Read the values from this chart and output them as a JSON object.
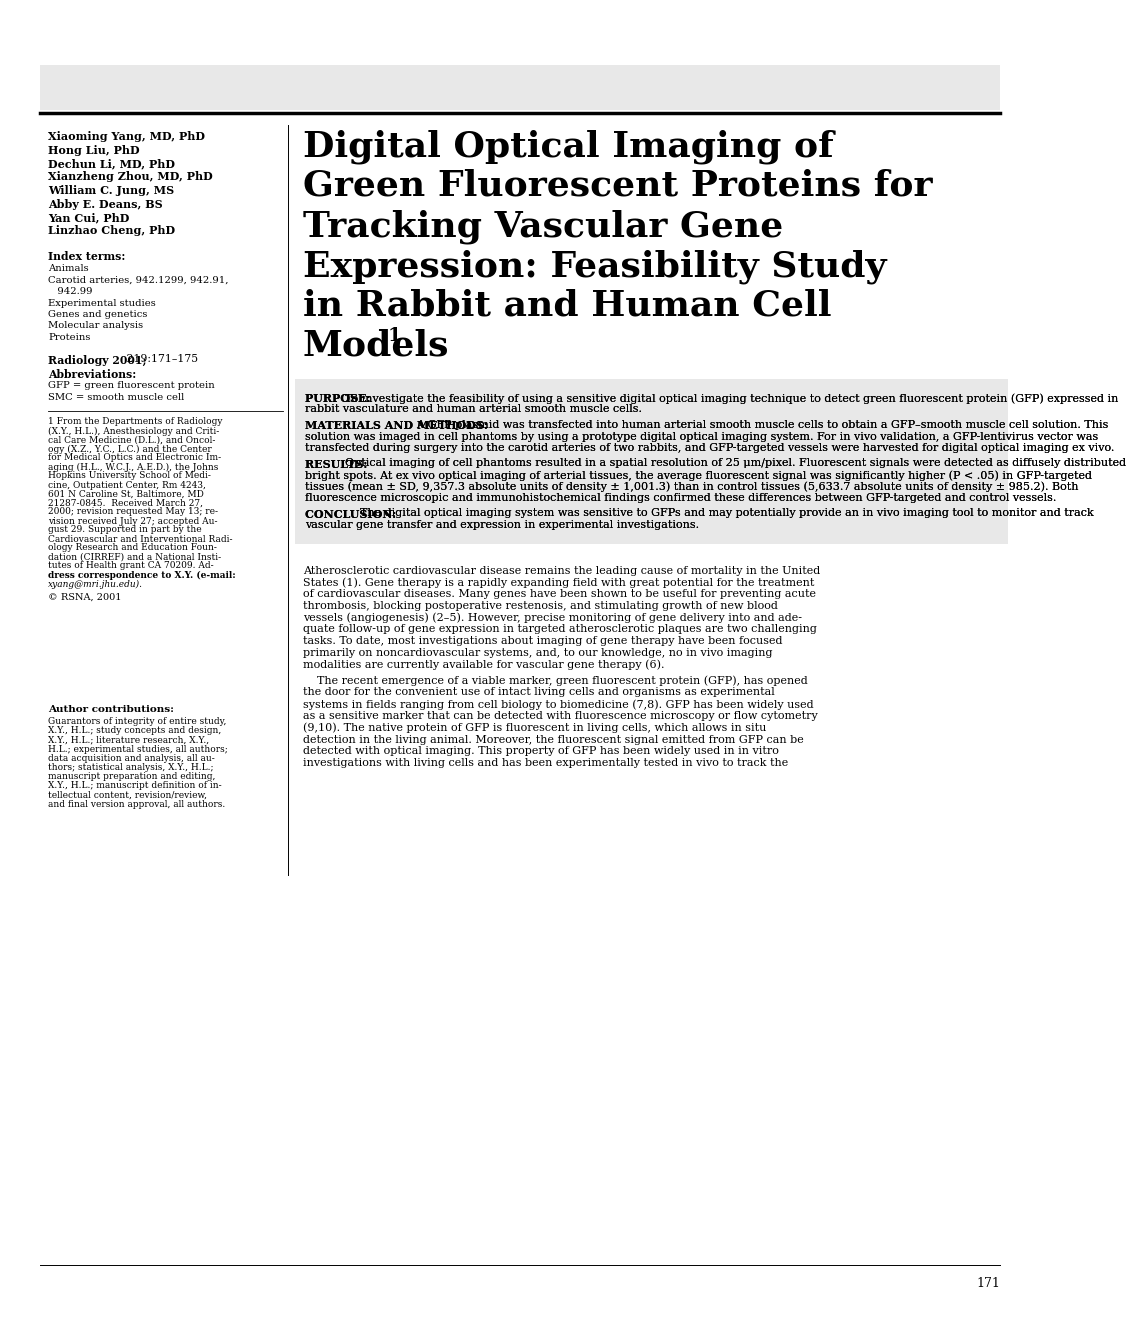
{
  "bg_color": "#ffffff",
  "header_bar_color": "#e8e8e8",
  "abstract_bg_color": "#e8e8e8",
  "page_number": "171",
  "authors": [
    "Xiaoming Yang, MD, PhD",
    "Hong Liu, PhD",
    "Dechun Li, MD, PhD",
    "Xianzheng Zhou, MD, PhD",
    "William C. Jung, MS",
    "Abby E. Deans, BS",
    "Yan Cui, PhD",
    "Linzhao Cheng, PhD"
  ],
  "index_terms_label": "Index terms:",
  "index_terms": [
    "Animals",
    "Carotid arteries, 942.1299, 942.91,",
    "   942.99",
    "Experimental studies",
    "Genes and genetics",
    "Molecular analysis",
    "Proteins"
  ],
  "radiology_ref_bold": "Radiology 2001;",
  "radiology_ref_normal": " 219:171–175",
  "abbreviations_label": "Abbreviations:",
  "abbreviations": [
    "GFP = green fluorescent protein",
    "SMC = smooth muscle cell"
  ],
  "footnote_lines": [
    "1 From the Departments of Radiology",
    "(X.Y., H.L.), Anesthesiology and Criti-",
    "cal Care Medicine (D.L.), and Oncol-",
    "ogy (X.Z., Y.C., L.C.) and the Center",
    "for Medical Optics and Electronic Im-",
    "aging (H.L., W.C.J., A.E.D.), the Johns",
    "Hopkins University School of Medi-",
    "cine, Outpatient Center, Rm 4243,",
    "601 N Caroline St, Baltimore, MD",
    "21287-0845.  Received March 27,",
    "2000; revision requested May 13; re-",
    "vision received July 27; accepted Au-",
    "gust 29. Supported in part by the",
    "Cardiovascular and Interventional Radi-",
    "ology Research and Education Foun-",
    "dation (CIRREF) and a National Insti-",
    "tutes of Health grant CA 70209. Ad-",
    "dress correspondence to X.Y. (e-mail:",
    "xyang@mri.jhu.edu)."
  ],
  "footnote_bold_start": "dress correspondence to X.Y.",
  "copyright": "© RSNA, 2001",
  "author_contributions_label": "Author contributions:",
  "author_contributions_lines": [
    "Guarantors of integrity of entire study,",
    "X.Y., H.L.; study concepts and design,",
    "X.Y., H.L.; literature research, X.Y.,",
    "H.L.; experimental studies, all authors;",
    "data acquisition and analysis, all au-",
    "thors; statistical analysis, X.Y., H.L.;",
    "manuscript preparation and editing,",
    "X.Y., H.L.; manuscript definition of in-",
    "tellectual content, revision/review,",
    "and final version approval, all authors."
  ],
  "main_title_lines": [
    "Digital Optical Imaging of",
    "Green Fluorescent Proteins for",
    "Tracking Vascular Gene",
    "Expression: Feasibility Study",
    "in Rabbit and Human Cell",
    "Models"
  ],
  "main_title_superscript": "1",
  "purpose_label": "PURPOSE:",
  "purpose_text": "To investigate the feasibility of using a sensitive digital optical imaging technique to detect green fluorescent protein (GFP) expressed in rabbit vasculature and human arterial smooth muscle cells.",
  "methods_label": "MATERIALS AND METHODS:",
  "methods_text": "A GFP plasmid was transfected into human arterial smooth muscle cells to obtain a GFP–smooth muscle cell solution. This solution was imaged in cell phantoms by using a prototype digital optical imaging system. For in vivo validation, a GFP-lentivirus vector was transfected during surgery into the carotid arteries of two rabbits, and GFP-targeted vessels were harvested for digital optical imaging ex vivo.",
  "results_label": "RESULTS:",
  "results_text": "Optical imaging of cell phantoms resulted in a spatial resolution of 25 μm/pixel. Fluorescent signals were detected as diffusely distributed bright spots. At ex vivo optical imaging of arterial tissues, the average fluorescent signal was significantly higher (P < .05) in GFP-targeted tissues (mean ± SD, 9,357.3 absolute units of density ± 1,001.3) than in control tissues (5,633.7 absolute units of density ± 985.2). Both fluorescence microscopic and immunohistochemical findings confirmed these differences between GFP-targeted and control vessels.",
  "conclusion_label": "CONCLUSION:",
  "conclusion_text": "The digital optical imaging system was sensitive to GFPs and may potentially provide an in vivo imaging tool to monitor and track vascular gene transfer and expression in experimental investigations.",
  "body_para1_lines": [
    "Atherosclerotic cardiovascular disease remains the leading cause of mortality in the United",
    "States (1). Gene therapy is a rapidly expanding field with great potential for the treatment",
    "of cardiovascular diseases. Many genes have been shown to be useful for preventing acute",
    "thrombosis, blocking postoperative restenosis, and stimulating growth of new blood",
    "vessels (angiogenesis) (2–5). However, precise monitoring of gene delivery into and ade-",
    "quate follow-up of gene expression in targeted atherosclerotic plaques are two challenging",
    "tasks. To date, most investigations about imaging of gene therapy have been focused",
    "primarily on noncardiovascular systems, and, to our knowledge, no in vivo imaging",
    "modalities are currently available for vascular gene therapy (6)."
  ],
  "body_para2_lines": [
    "    The recent emergence of a viable marker, green fluorescent protein (GFP), has opened",
    "the door for the convenient use of intact living cells and organisms as experimental",
    "systems in fields ranging from cell biology to biomedicine (7,8). GFP has been widely used",
    "as a sensitive marker that can be detected with fluorescence microscopy or flow cytometry",
    "(9,10). The native protein of GFP is fluorescent in living cells, which allows in situ",
    "detection in the living animal. Moreover, the fluorescent signal emitted from GFP can be",
    "detected with optical imaging. This property of GFP has been widely used in in vitro",
    "investigations with living cells and has been experimentally tested in vivo to track the"
  ]
}
